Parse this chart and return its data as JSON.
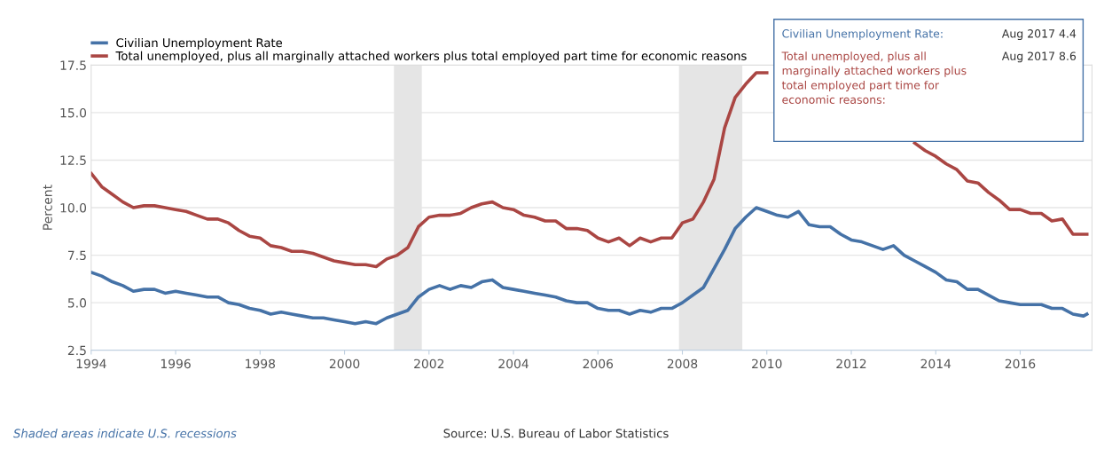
{
  "chart_data": {
    "type": "line",
    "ylabel": "Percent",
    "xlim": [
      1994,
      2017.7
    ],
    "xticks": [
      1994,
      1996,
      1998,
      2000,
      2002,
      2004,
      2006,
      2008,
      2010,
      2012,
      2014,
      2016
    ],
    "ylim": [
      2.5,
      17.5
    ],
    "yticks": [
      {
        "value": 2.5,
        "label": "2.5"
      },
      {
        "value": 5,
        "label": "5.0"
      },
      {
        "value": 7.5,
        "label": "7.5"
      },
      {
        "value": 10,
        "label": "10.0"
      },
      {
        "value": 12.5,
        "label": "12.5"
      },
      {
        "value": 15,
        "label": "15.0"
      },
      {
        "value": 17.5,
        "label": "17.5"
      }
    ],
    "grid": "y",
    "legend": "top left",
    "marker": "none",
    "line_style": "solid",
    "bands": [
      {
        "axis": "x",
        "from": 2001.17,
        "to": 2001.83,
        "color": "#e5e5e5"
      },
      {
        "axis": "x",
        "from": 2007.92,
        "to": 2009.42,
        "color": "#e5e5e5"
      }
    ],
    "series": [
      {
        "name": "Civilian Unemployment Rate",
        "color": "#4572a7",
        "x": [
          1994.0,
          1994.25,
          1994.5,
          1994.75,
          1995.0,
          1995.25,
          1995.5,
          1995.75,
          1996.0,
          1996.25,
          1996.5,
          1996.75,
          1997.0,
          1997.25,
          1997.5,
          1997.75,
          1998.0,
          1998.25,
          1998.5,
          1998.75,
          1999.0,
          1999.25,
          1999.5,
          1999.75,
          2000.0,
          2000.25,
          2000.5,
          2000.75,
          2001.0,
          2001.25,
          2001.5,
          2001.75,
          2002.0,
          2002.25,
          2002.5,
          2002.75,
          2003.0,
          2003.25,
          2003.5,
          2003.75,
          2004.0,
          2004.25,
          2004.5,
          2004.75,
          2005.0,
          2005.25,
          2005.5,
          2005.75,
          2006.0,
          2006.25,
          2006.5,
          2006.75,
          2007.0,
          2007.25,
          2007.5,
          2007.75,
          2008.0,
          2008.25,
          2008.5,
          2008.75,
          2009.0,
          2009.25,
          2009.5,
          2009.75,
          2010.0,
          2010.25,
          2010.5,
          2010.75,
          2011.0,
          2011.25,
          2011.5,
          2011.75,
          2012.0,
          2012.25,
          2012.5,
          2012.75,
          2013.0,
          2013.25,
          2013.5,
          2013.75,
          2014.0,
          2014.25,
          2014.5,
          2014.75,
          2015.0,
          2015.25,
          2015.5,
          2015.75,
          2016.0,
          2016.25,
          2016.5,
          2016.75,
          2017.0,
          2017.25,
          2017.5,
          2017.58
        ],
        "values": [
          6.6,
          6.4,
          6.1,
          5.9,
          5.6,
          5.7,
          5.7,
          5.5,
          5.6,
          5.5,
          5.4,
          5.3,
          5.3,
          5.0,
          4.9,
          4.7,
          4.6,
          4.4,
          4.5,
          4.4,
          4.3,
          4.2,
          4.2,
          4.1,
          4.0,
          3.9,
          4.0,
          3.9,
          4.2,
          4.4,
          4.6,
          5.3,
          5.7,
          5.9,
          5.7,
          5.9,
          5.8,
          6.1,
          6.2,
          5.8,
          5.7,
          5.6,
          5.5,
          5.4,
          5.3,
          5.1,
          5.0,
          5.0,
          4.7,
          4.6,
          4.6,
          4.4,
          4.6,
          4.5,
          4.7,
          4.7,
          5.0,
          5.4,
          5.8,
          6.8,
          7.8,
          8.9,
          9.5,
          10.0,
          9.8,
          9.6,
          9.5,
          9.8,
          9.1,
          9.0,
          9.0,
          8.6,
          8.3,
          8.2,
          8.0,
          7.8,
          8.0,
          7.5,
          7.2,
          6.9,
          6.6,
          6.2,
          6.1,
          5.7,
          5.7,
          5.4,
          5.1,
          5.0,
          4.9,
          4.9,
          4.9,
          4.7,
          4.7,
          4.4,
          4.3,
          4.4
        ]
      },
      {
        "name": "Total unemployed, plus all marginally attached workers plus total employed part time for economic reasons",
        "color": "#aa4643",
        "x": [
          1994.0,
          1994.25,
          1994.5,
          1994.75,
          1995.0,
          1995.25,
          1995.5,
          1995.75,
          1996.0,
          1996.25,
          1996.5,
          1996.75,
          1997.0,
          1997.25,
          1997.5,
          1997.75,
          1998.0,
          1998.25,
          1998.5,
          1998.75,
          1999.0,
          1999.25,
          1999.5,
          1999.75,
          2000.0,
          2000.25,
          2000.5,
          2000.75,
          2001.0,
          2001.25,
          2001.5,
          2001.75,
          2002.0,
          2002.25,
          2002.5,
          2002.75,
          2003.0,
          2003.25,
          2003.5,
          2003.75,
          2004.0,
          2004.25,
          2004.5,
          2004.75,
          2005.0,
          2005.25,
          2005.5,
          2005.75,
          2006.0,
          2006.25,
          2006.5,
          2006.75,
          2007.0,
          2007.25,
          2007.5,
          2007.75,
          2008.0,
          2008.25,
          2008.5,
          2008.75,
          2009.0,
          2009.25,
          2009.5,
          2009.75,
          2010.0,
          2010.25,
          2010.5,
          2010.75,
          2011.0,
          2011.25,
          2011.5,
          2011.75,
          2012.0,
          2012.25,
          2012.5,
          2012.75,
          2013.0,
          2013.25,
          2013.5,
          2013.75,
          2014.0,
          2014.25,
          2014.5,
          2014.75,
          2015.0,
          2015.25,
          2015.5,
          2015.75,
          2016.0,
          2016.25,
          2016.5,
          2016.75,
          2017.0,
          2017.25,
          2017.5,
          2017.58
        ],
        "values": [
          11.8,
          11.1,
          10.7,
          10.3,
          10.0,
          10.1,
          10.1,
          10.0,
          9.9,
          9.8,
          9.6,
          9.4,
          9.4,
          9.2,
          8.8,
          8.5,
          8.4,
          8.0,
          7.9,
          7.7,
          7.7,
          7.6,
          7.4,
          7.2,
          7.1,
          7.0,
          7.0,
          6.9,
          7.3,
          7.5,
          7.9,
          9.0,
          9.5,
          9.6,
          9.6,
          9.7,
          10.0,
          10.2,
          10.3,
          10.0,
          9.9,
          9.6,
          9.5,
          9.3,
          9.3,
          8.9,
          8.9,
          8.8,
          8.4,
          8.2,
          8.4,
          8.0,
          8.4,
          8.2,
          8.4,
          8.4,
          9.2,
          9.4,
          10.3,
          11.5,
          14.2,
          15.8,
          16.5,
          17.1,
          17.1,
          null,
          null,
          null,
          null,
          null,
          null,
          null,
          null,
          null,
          null,
          null,
          null,
          null,
          13.4,
          13.0,
          12.7,
          12.3,
          12.0,
          11.4,
          11.3,
          10.8,
          10.4,
          9.9,
          9.9,
          9.7,
          9.7,
          9.3,
          9.4,
          8.6,
          8.6,
          8.6
        ]
      }
    ],
    "annotations": [
      "Civilian Unemployment Rate:",
      "Aug 2017 4.4",
      "Total unemployed, plus all\nmarginally attached workers plus\ntotal employed part time for\neconomic reasons:",
      "Aug 2017 8.6",
      "Shaded areas indicate U.S. recessions",
      "Source: U.S. Bureau of Labor Statistics"
    ]
  }
}
